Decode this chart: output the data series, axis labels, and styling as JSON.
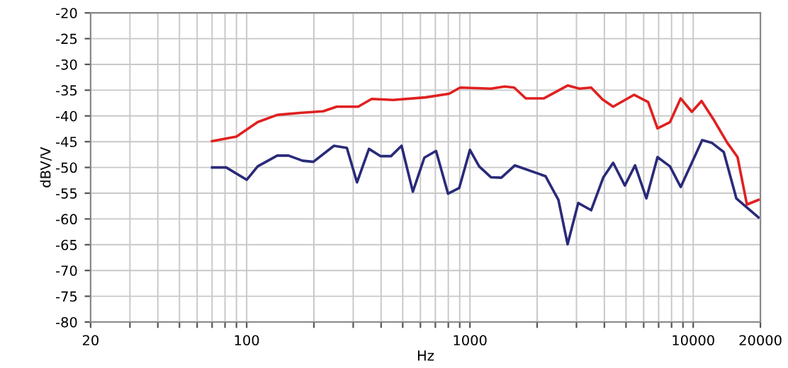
{
  "chart_data": {
    "type": "line",
    "xlabel": "Hz",
    "ylabel": "dBV/V",
    "log": "x",
    "grid": true,
    "marker": "none",
    "line_style": "solid",
    "xlim": [
      20,
      20000
    ],
    "ylim": [
      -80,
      -20
    ],
    "xticks": [
      20,
      {
        "value": 30,
        "label": null
      },
      {
        "value": 40,
        "label": null
      },
      {
        "value": 50,
        "label": null
      },
      {
        "value": 60,
        "label": null
      },
      {
        "value": 70,
        "label": null
      },
      {
        "value": 80,
        "label": null
      },
      {
        "value": 90,
        "label": null
      },
      100,
      {
        "value": 200,
        "label": null
      },
      {
        "value": 300,
        "label": null
      },
      {
        "value": 400,
        "label": null
      },
      {
        "value": 500,
        "label": null
      },
      {
        "value": 600,
        "label": null
      },
      {
        "value": 700,
        "label": null
      },
      {
        "value": 800,
        "label": null
      },
      {
        "value": 900,
        "label": null
      },
      1000,
      {
        "value": 2000,
        "label": null
      },
      {
        "value": 3000,
        "label": null
      },
      {
        "value": 4000,
        "label": null
      },
      {
        "value": 5000,
        "label": null
      },
      {
        "value": 6000,
        "label": null
      },
      {
        "value": 7000,
        "label": null
      },
      {
        "value": 8000,
        "label": null
      },
      {
        "value": 9000,
        "label": null
      },
      10000,
      20000
    ],
    "yticks": [
      -80,
      -75,
      -70,
      -65,
      -60,
      -55,
      -50,
      -45,
      -40,
      -35,
      -30,
      -25,
      -20
    ],
    "series": [
      {
        "color": "#e02020",
        "x": [
          70,
          90,
          112,
          137,
          173,
          220,
          253,
          316,
          363,
          453,
          631,
          806,
          904,
          1241,
          1432,
          1578,
          1778,
          2140,
          2738,
          3090,
          3490,
          3926,
          4380,
          5430,
          6280,
          6920,
          7870,
          8790,
          9860,
          10900,
          12300,
          14200,
          15800,
          17400,
          19600
        ],
        "values": [
          -44.9,
          -44,
          -41.2,
          -39.8,
          -39.4,
          -39.1,
          -38.2,
          -38.2,
          -36.7,
          -36.9,
          -36.4,
          -35.7,
          -34.5,
          -34.7,
          -34.3,
          -34.5,
          -36.6,
          -36.6,
          -34.1,
          -34.7,
          -34.5,
          -36.8,
          -38.2,
          -35.9,
          -37.3,
          -42.4,
          -41.2,
          -36.6,
          -39.2,
          -37.1,
          -40.6,
          -45.2,
          -48,
          -57.2,
          -56.3
        ]
      },
      {
        "color": "#2a2a7a",
        "x": [
          70,
          81,
          100,
          112,
          137,
          154,
          178,
          199,
          246,
          281,
          312,
          353,
          397,
          443,
          494,
          555,
          625,
          705,
          798,
          895,
          1000,
          1100,
          1241,
          1382,
          1590,
          2180,
          2490,
          2738,
          3055,
          3490,
          3960,
          4380,
          4940,
          5490,
          6170,
          6920,
          7870,
          8790,
          10970,
          12100,
          13700,
          15600,
          19600
        ],
        "values": [
          -50,
          -50,
          -52.4,
          -49.8,
          -47.7,
          -47.7,
          -48.7,
          -48.9,
          -45.8,
          -46.2,
          -52.9,
          -46.4,
          -47.8,
          -47.8,
          -45.8,
          -54.7,
          -48.1,
          -46.8,
          -55.1,
          -54,
          -46.6,
          -49.8,
          -51.9,
          -52,
          -49.6,
          -51.7,
          -56.3,
          -64.9,
          -56.9,
          -58.3,
          -51.9,
          -49.1,
          -53.5,
          -49.6,
          -56,
          -48,
          -49.8,
          -53.8,
          -44.7,
          -45.2,
          -47,
          -56,
          -59.7
        ]
      }
    ]
  }
}
